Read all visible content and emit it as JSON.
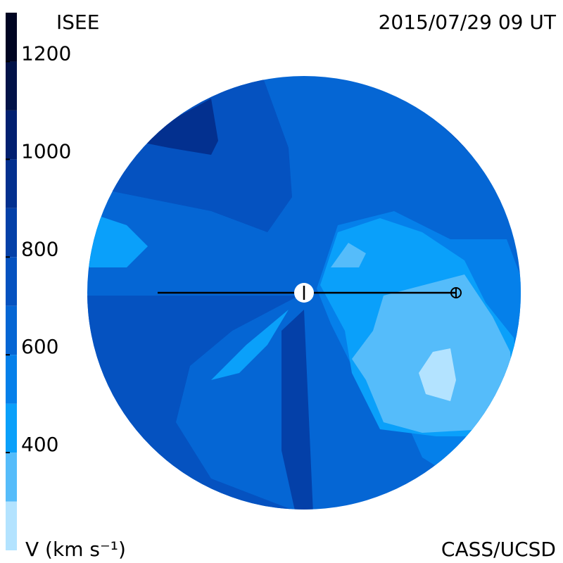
{
  "header": {
    "title": "ISEE",
    "date": "2015/07/29 09 UT"
  },
  "footer": {
    "credit": "CASS/UCSD"
  },
  "colorbar": {
    "label": "V (km s⁻¹)",
    "lim": [
      200,
      1300
    ],
    "ticks": [
      400,
      600,
      800,
      1000,
      1200
    ],
    "levels": [
      200,
      300,
      400,
      500,
      600,
      700,
      800,
      900,
      1000,
      1100,
      1200,
      1300
    ],
    "colors": [
      "#b3e3ff",
      "#55bcfa",
      "#0aa0fa",
      "#0580ea",
      "#0566d4",
      "#0552c0",
      "#0440a8",
      "#03308f",
      "#022070",
      "#011248",
      "#000522"
    ]
  }
}
